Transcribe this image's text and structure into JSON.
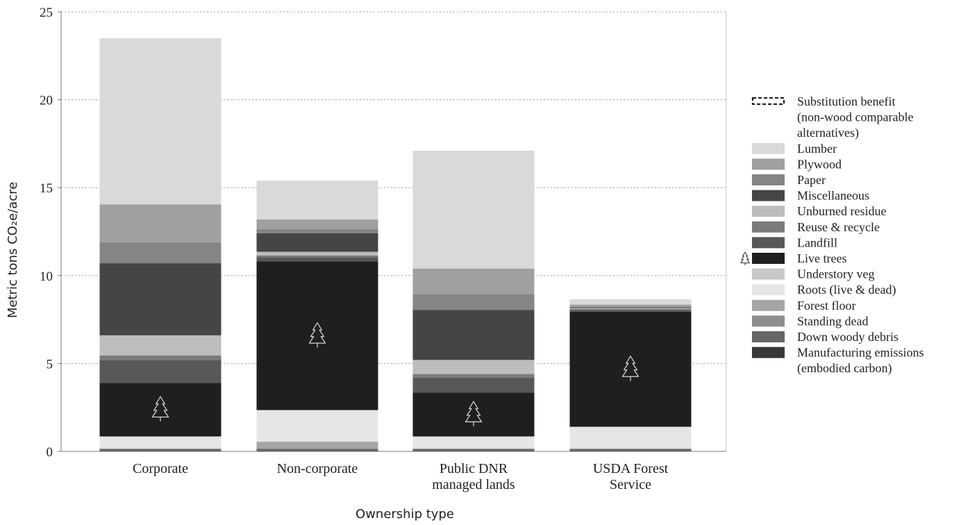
{
  "chart_data": {
    "type": "bar",
    "stacked": true,
    "title": "",
    "xlabel": "Ownership type",
    "ylabel": "Metric tons CO₂e/acre",
    "ylim": [
      0,
      25
    ],
    "yticks": [
      0,
      5,
      10,
      15,
      20,
      25
    ],
    "grid": "horizontal dotted",
    "legend_position": "right",
    "categories": [
      [
        "Corporate"
      ],
      [
        "Non-corporate"
      ],
      [
        "Public DNR",
        "managed lands"
      ],
      [
        "USDA Forest",
        "Service"
      ]
    ],
    "series": [
      {
        "name": "Manufacturing emissions (embodied carbon)",
        "color": "#383838",
        "values": [
          0.05,
          0.05,
          0.05,
          0.05
        ]
      },
      {
        "name": "Down woody debris",
        "color": "#666666",
        "values": [
          0.1,
          0.1,
          0.1,
          0.1
        ]
      },
      {
        "name": "Standing dead",
        "color": "#8e8e8e",
        "values": [
          0.0,
          0.0,
          0.0,
          0.0
        ]
      },
      {
        "name": "Forest floor",
        "color": "#a6a6a6",
        "values": [
          0.0,
          0.4,
          0.0,
          0.0
        ]
      },
      {
        "name": "Roots (live & dead)",
        "color": "#e6e6e6",
        "values": [
          0.7,
          1.8,
          0.7,
          1.25
        ]
      },
      {
        "name": "Understory veg",
        "color": "#c9c9c9",
        "values": [
          0.0,
          0.0,
          0.0,
          0.0
        ]
      },
      {
        "name": "Live trees",
        "color": "#1f1f1f",
        "values": [
          3.05,
          8.45,
          2.5,
          6.55
        ]
      },
      {
        "name": "Landfill",
        "color": "#585858",
        "values": [
          1.3,
          0.25,
          0.85,
          0.1
        ]
      },
      {
        "name": "Reuse & recycle",
        "color": "#7b7b7b",
        "values": [
          0.25,
          0.1,
          0.2,
          0.05
        ]
      },
      {
        "name": "Unburned residue",
        "color": "#bdbdbd",
        "values": [
          1.15,
          0.2,
          0.8,
          0.05
        ]
      },
      {
        "name": "Miscellaneous",
        "color": "#454545",
        "values": [
          4.1,
          1.05,
          2.85,
          0.05
        ]
      },
      {
        "name": "Paper",
        "color": "#858585",
        "values": [
          1.2,
          0.25,
          0.9,
          0.0
        ]
      },
      {
        "name": "Plywood",
        "color": "#a0a0a0",
        "values": [
          2.15,
          0.55,
          1.45,
          0.15
        ]
      },
      {
        "name": "Lumber",
        "color": "#d9d9d9",
        "values": [
          9.45,
          2.2,
          6.7,
          0.3
        ]
      },
      {
        "name": "Substitution benefit (non-wood comparable alternatives)",
        "color": "none",
        "values": [
          0,
          0,
          0,
          0
        ]
      }
    ],
    "legend": [
      {
        "lines": [
          "Substitution benefit",
          "(non-wood comparable",
          "alternatives)"
        ],
        "style": "dashed",
        "color": "#ffffff"
      },
      {
        "lines": [
          "Lumber"
        ],
        "color": "#d9d9d9"
      },
      {
        "lines": [
          "Plywood"
        ],
        "color": "#a0a0a0"
      },
      {
        "lines": [
          "Paper"
        ],
        "color": "#858585"
      },
      {
        "lines": [
          "Miscellaneous"
        ],
        "color": "#454545"
      },
      {
        "lines": [
          "Unburned residue"
        ],
        "color": "#bdbdbd"
      },
      {
        "lines": [
          "Reuse & recycle"
        ],
        "color": "#7b7b7b"
      },
      {
        "lines": [
          "Landfill"
        ],
        "color": "#585858"
      },
      {
        "lines": [
          "Live trees"
        ],
        "color": "#1f1f1f",
        "icon": "tree-icon"
      },
      {
        "lines": [
          "Understory veg"
        ],
        "color": "#c9c9c9"
      },
      {
        "lines": [
          "Roots (live & dead)"
        ],
        "color": "#e6e6e6"
      },
      {
        "lines": [
          "Forest floor"
        ],
        "color": "#a6a6a6"
      },
      {
        "lines": [
          "Standing dead"
        ],
        "color": "#8e8e8e"
      },
      {
        "lines": [
          "Down woody debris"
        ],
        "color": "#666666"
      },
      {
        "lines": [
          "Manufacturing emissions",
          "(embodied carbon)"
        ],
        "color": "#383838"
      }
    ]
  }
}
